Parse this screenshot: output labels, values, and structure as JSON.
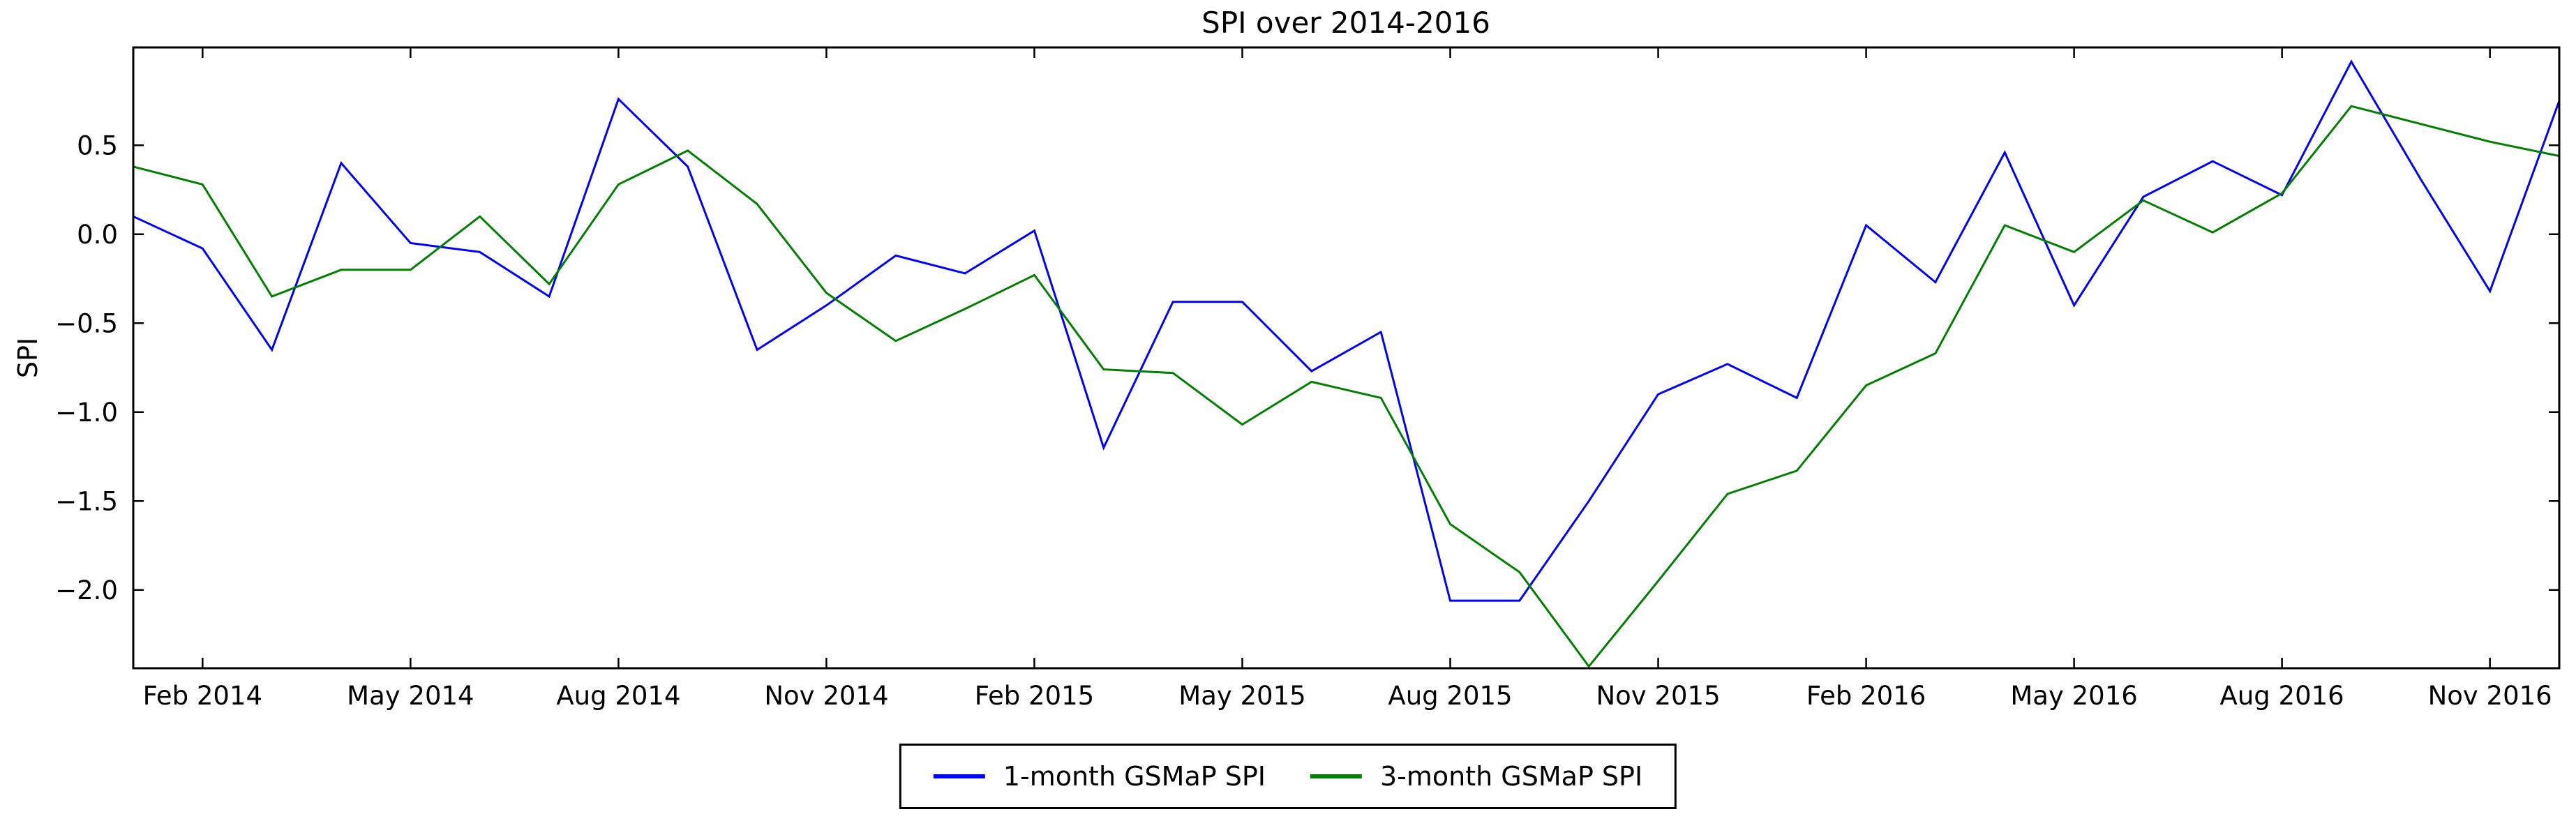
{
  "title": "SPI over 2014-2016",
  "ylabel": "SPI",
  "legend": {
    "entries": [
      {
        "label": "1-month GSMaP SPI",
        "color": "#0000ff"
      },
      {
        "label": "3-month GSMaP SPI",
        "color": "#007f00"
      }
    ]
  },
  "chart_data": {
    "type": "line",
    "title": "SPI over 2014-2016",
    "xlabel": "",
    "ylabel": "SPI",
    "grid": false,
    "legend_position": "below-center",
    "x": [
      "Jan 2014",
      "Feb 2014",
      "Mar 2014",
      "Apr 2014",
      "May 2014",
      "Jun 2014",
      "Jul 2014",
      "Aug 2014",
      "Sep 2014",
      "Oct 2014",
      "Nov 2014",
      "Dec 2014",
      "Jan 2015",
      "Feb 2015",
      "Mar 2015",
      "Apr 2015",
      "May 2015",
      "Jun 2015",
      "Jul 2015",
      "Aug 2015",
      "Sep 2015",
      "Oct 2015",
      "Nov 2015",
      "Dec 2015",
      "Jan 2016",
      "Feb 2016",
      "Mar 2016",
      "Apr 2016",
      "May 2016",
      "Jun 2016",
      "Jul 2016",
      "Aug 2016",
      "Sep 2016",
      "Oct 2016",
      "Nov 2016",
      "Dec 2016"
    ],
    "x_tick_labels": [
      "Feb 2014",
      "May 2014",
      "Aug 2014",
      "Nov 2014",
      "Feb 2015",
      "May 2015",
      "Aug 2015",
      "Nov 2015",
      "Feb 2016",
      "May 2016",
      "Aug 2016",
      "Nov 2016"
    ],
    "x_tick_indices": [
      1,
      4,
      7,
      10,
      13,
      16,
      19,
      22,
      25,
      28,
      31,
      34
    ],
    "y_ticks": [
      0.5,
      0.0,
      -0.5,
      -1.0,
      -1.5,
      -2.0
    ],
    "y_tick_labels": [
      "0.5",
      "0.0",
      "−0.5",
      "−1.0",
      "−1.5",
      "−2.0"
    ],
    "ylim": [
      -2.44,
      1.05
    ],
    "series": [
      {
        "name": "1-month GSMaP SPI",
        "color": "#0000ff",
        "values": [
          0.1,
          -0.08,
          -0.65,
          0.4,
          -0.05,
          -0.1,
          -0.35,
          0.76,
          0.38,
          -0.65,
          -0.4,
          -0.12,
          -0.22,
          0.02,
          -1.2,
          -0.38,
          -0.38,
          -0.77,
          -0.55,
          -2.06,
          -2.06,
          -1.5,
          -0.9,
          -0.73,
          -0.92,
          0.05,
          -0.27,
          0.46,
          -0.4,
          0.21,
          0.41,
          0.22,
          0.97,
          0.31,
          -0.32,
          0.75
        ]
      },
      {
        "name": "3-month GSMaP SPI",
        "color": "#007f00",
        "values": [
          0.38,
          0.28,
          -0.35,
          -0.2,
          -0.2,
          0.1,
          -0.28,
          0.28,
          0.47,
          0.17,
          -0.33,
          -0.6,
          -0.42,
          -0.23,
          -0.76,
          -0.78,
          -1.07,
          -0.83,
          -0.92,
          -1.63,
          -1.9,
          -2.43,
          -1.95,
          -1.46,
          -1.33,
          -0.85,
          -0.67,
          0.05,
          -0.1,
          0.19,
          0.01,
          0.23,
          0.72,
          0.62,
          0.52,
          0.44
        ]
      }
    ]
  }
}
